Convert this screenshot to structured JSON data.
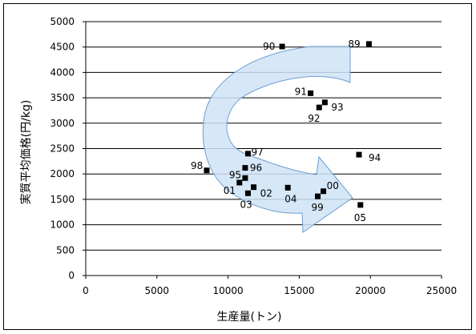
{
  "chart_data": {
    "type": "scatter",
    "title": "",
    "xlabel": "生産量(トン)",
    "ylabel": "実質平均価格(円/kg)",
    "xlim": [
      0,
      25000
    ],
    "ylim": [
      0,
      5000
    ],
    "xticks": [
      "0",
      "5000",
      "10000",
      "15000",
      "20000",
      "25000"
    ],
    "yticks": [
      "0",
      "500",
      "1000",
      "1500",
      "2000",
      "2500",
      "3000",
      "3500",
      "4000",
      "4500",
      "5000"
    ],
    "grid": "horizontal",
    "marker_color": "#000000",
    "arrow_color": "#cfe3f7",
    "points": [
      {
        "label": "89",
        "x": 19900,
        "y": 4560
      },
      {
        "label": "90",
        "x": 13800,
        "y": 4510
      },
      {
        "label": "91",
        "x": 15800,
        "y": 3590
      },
      {
        "label": "92",
        "x": 16400,
        "y": 3310
      },
      {
        "label": "93",
        "x": 16800,
        "y": 3410
      },
      {
        "label": "94",
        "x": 19200,
        "y": 2380
      },
      {
        "label": "95",
        "x": 11200,
        "y": 1920
      },
      {
        "label": "96",
        "x": 11200,
        "y": 2120
      },
      {
        "label": "97",
        "x": 11400,
        "y": 2400
      },
      {
        "label": "98",
        "x": 8500,
        "y": 2070
      },
      {
        "label": "99",
        "x": 16300,
        "y": 1560
      },
      {
        "label": "00",
        "x": 16700,
        "y": 1660
      },
      {
        "label": "01",
        "x": 10800,
        "y": 1830
      },
      {
        "label": "02",
        "x": 11800,
        "y": 1740
      },
      {
        "label": "03",
        "x": 11400,
        "y": 1620
      },
      {
        "label": "04",
        "x": 14200,
        "y": 1730
      },
      {
        "label": "05",
        "x": 19300,
        "y": 1390
      }
    ]
  }
}
